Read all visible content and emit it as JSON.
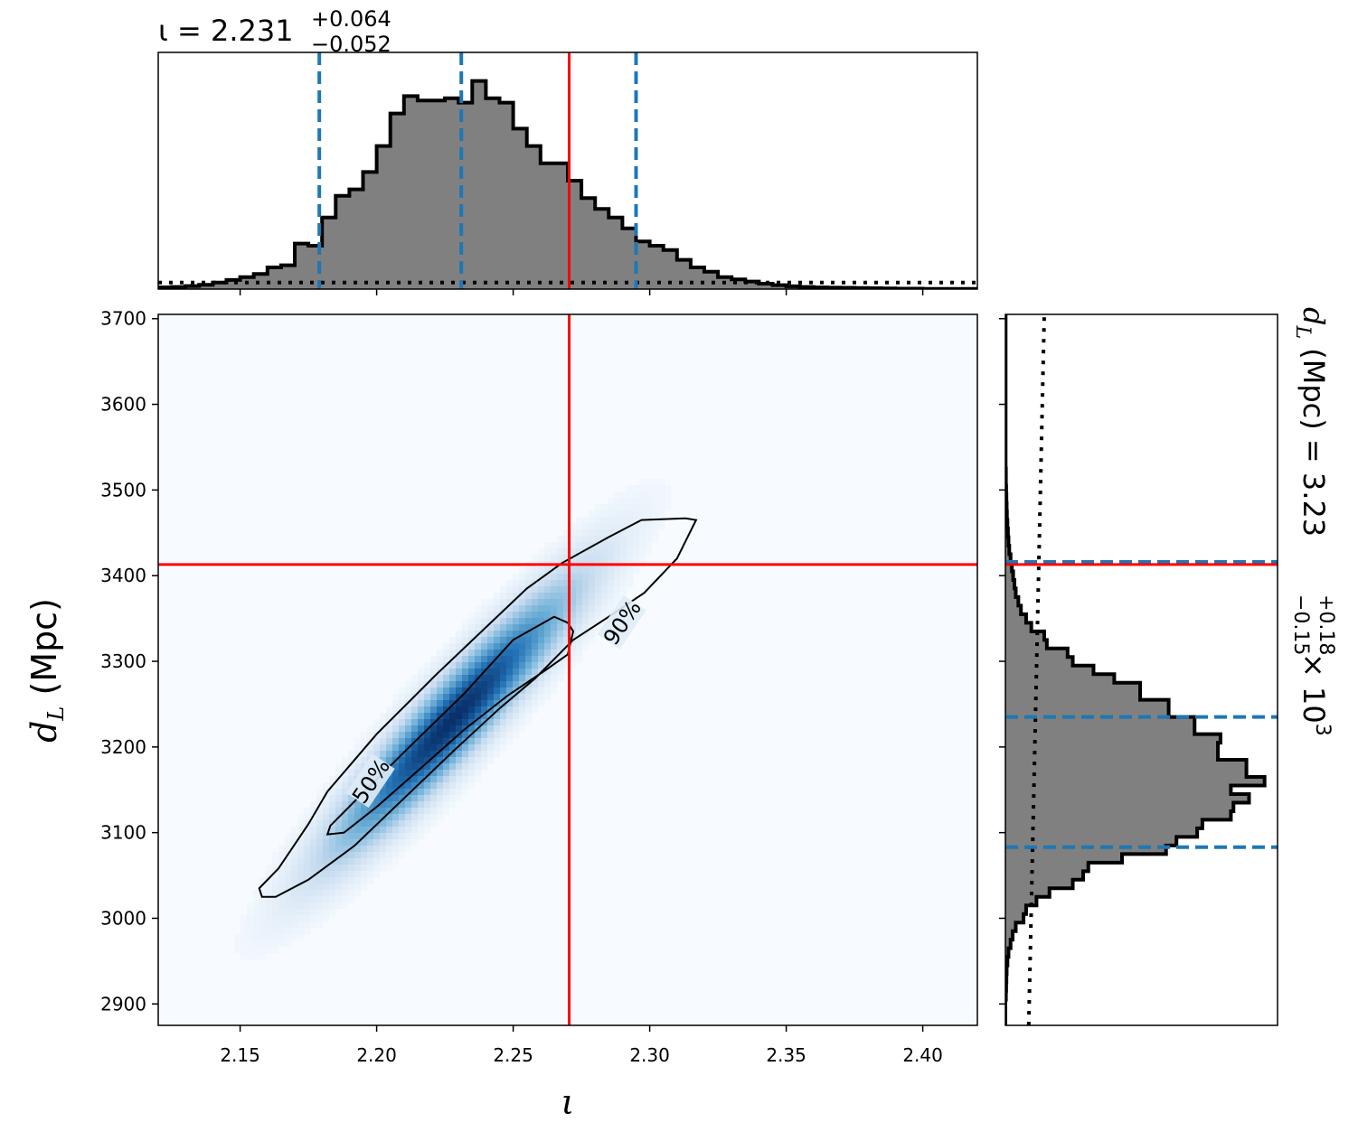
{
  "colors": {
    "hist_fill": "#808080",
    "hist_edge": "#000000",
    "injection": "#ff0000",
    "quantile": "#1f77b4",
    "prior": "#000000",
    "density_cmap": [
      "#f7fbff",
      "#c6dbef",
      "#6baed6",
      "#2171b5",
      "#08306b"
    ]
  },
  "chart_data": {
    "type": "corner",
    "parameters": [
      "iota",
      "d_L"
    ],
    "injection": {
      "iota": 2.2705,
      "d_L": 3413
    },
    "title_iota": {
      "prefix": "ι = 2.231",
      "sup": "+0.064",
      "sub": "−0.052"
    },
    "title_dL": {
      "prefix": "d",
      "subscript": "L",
      "middle": " (Mpc) = 3.23",
      "sup": "+0.18",
      "sub": "−0.15",
      "suffix": " × 10",
      "exponent": "3"
    },
    "xlabel": "ι",
    "ylabel": "d_L (Mpc)",
    "ylabel_main": "d",
    "ylabel_sub": "L",
    "ylabel_rest": " (Mpc)",
    "x_range": [
      2.12,
      2.42
    ],
    "y_range": [
      2875,
      3705
    ],
    "x_ticks": [
      2.15,
      2.2,
      2.25,
      2.3,
      2.35,
      2.4
    ],
    "x_tick_labels": [
      "2.15",
      "2.20",
      "2.25",
      "2.30",
      "2.35",
      "2.40"
    ],
    "y_ticks": [
      2900,
      3000,
      3100,
      3200,
      3300,
      3400,
      3500,
      3600,
      3700
    ],
    "y_tick_labels": [
      "2900",
      "3000",
      "3100",
      "3200",
      "3300",
      "3400",
      "3500",
      "3600",
      "3700"
    ],
    "iota_quantiles": [
      2.179,
      2.231,
      2.295
    ],
    "dL_quantiles": [
      3083,
      3235,
      3416
    ],
    "iota_hist": {
      "bin_start": 2.12,
      "bin_width": 0.005,
      "heights": [
        0.008,
        0.01,
        0.014,
        0.02,
        0.03,
        0.042,
        0.055,
        0.07,
        0.1,
        0.11,
        0.21,
        0.2,
        0.33,
        0.43,
        0.46,
        0.54,
        0.66,
        0.81,
        0.89,
        0.87,
        0.87,
        0.88,
        0.86,
        0.96,
        0.88,
        0.86,
        0.74,
        0.66,
        0.58,
        0.58,
        0.5,
        0.42,
        0.37,
        0.33,
        0.28,
        0.22,
        0.2,
        0.18,
        0.135,
        0.1,
        0.08,
        0.055,
        0.045,
        0.035,
        0.025,
        0.018,
        0.013,
        0.01,
        0.008,
        0.007,
        0.006,
        0.005,
        0.004,
        0.003,
        0.002,
        0.002,
        0.001,
        0.001,
        0.001,
        0.001
      ],
      "ymax": 1.0
    },
    "dL_hist": {
      "bin_start": 2875,
      "bin_width": 10,
      "heights": [
        0,
        0,
        0,
        0.002,
        0.003,
        0.004,
        0.005,
        0.008,
        0.012,
        0.02,
        0.028,
        0.04,
        0.07,
        0.08,
        0.12,
        0.17,
        0.26,
        0.3,
        0.32,
        0.45,
        0.62,
        0.66,
        0.74,
        0.76,
        0.87,
        0.88,
        0.94,
        0.87,
        1.0,
        0.93,
        0.93,
        0.82,
        0.82,
        0.83,
        0.73,
        0.73,
        0.63,
        0.63,
        0.52,
        0.52,
        0.42,
        0.34,
        0.26,
        0.24,
        0.16,
        0.15,
        0.1,
        0.08,
        0.06,
        0.05,
        0.04,
        0.035,
        0.03,
        0.025,
        0.02,
        0.015,
        0.012,
        0.01,
        0.008,
        0.006,
        0.005,
        0.004,
        0.003,
        0.002,
        0.002,
        0.001,
        0.001,
        0.001,
        0.001,
        0.001,
        0.001,
        0.001,
        0.001,
        0.001,
        0.001,
        0.001,
        0.001,
        0.001,
        0.001,
        0.001,
        0.001,
        0.001,
        0.001
      ],
      "xmax": 1.05
    },
    "prior_iota": {
      "value": 0.03
    },
    "prior_dL": {
      "start": 0.09,
      "end": 0.15
    },
    "density": {
      "center": [
        2.228,
        3232
      ],
      "major_sigma_x": 0.03,
      "slope": 3300,
      "minor_sigma_y": 38
    },
    "contour_90": [
      [
        2.158,
        3025
      ],
      [
        2.157,
        3035
      ],
      [
        2.164,
        3058
      ],
      [
        2.175,
        3110
      ],
      [
        2.182,
        3148
      ],
      [
        2.2,
        3215
      ],
      [
        2.222,
        3285
      ],
      [
        2.255,
        3385
      ],
      [
        2.268,
        3415
      ],
      [
        2.285,
        3445
      ],
      [
        2.297,
        3465
      ],
      [
        2.313,
        3467
      ],
      [
        2.317,
        3465
      ],
      [
        2.31,
        3420
      ],
      [
        2.298,
        3380
      ],
      [
        2.285,
        3352
      ],
      [
        2.272,
        3325
      ],
      [
        2.258,
        3280
      ],
      [
        2.245,
        3245
      ],
      [
        2.228,
        3195
      ],
      [
        2.21,
        3140
      ],
      [
        2.192,
        3085
      ],
      [
        2.175,
        3045
      ],
      [
        2.163,
        3025
      ],
      [
        2.158,
        3025
      ]
    ],
    "contour_50": [
      [
        2.182,
        3098
      ],
      [
        2.183,
        3108
      ],
      [
        2.193,
        3140
      ],
      [
        2.212,
        3200
      ],
      [
        2.232,
        3262
      ],
      [
        2.25,
        3325
      ],
      [
        2.265,
        3352
      ],
      [
        2.27,
        3345
      ],
      [
        2.272,
        3335
      ],
      [
        2.27,
        3308
      ],
      [
        2.262,
        3290
      ],
      [
        2.248,
        3260
      ],
      [
        2.232,
        3220
      ],
      [
        2.215,
        3172
      ],
      [
        2.2,
        3130
      ],
      [
        2.188,
        3100
      ],
      [
        2.182,
        3098
      ]
    ],
    "contour_labels": [
      {
        "text": "50%",
        "x": 2.198,
        "y": 3160,
        "angle": -56
      },
      {
        "text": "90%",
        "x": 2.29,
        "y": 3345,
        "angle": -56
      }
    ]
  }
}
